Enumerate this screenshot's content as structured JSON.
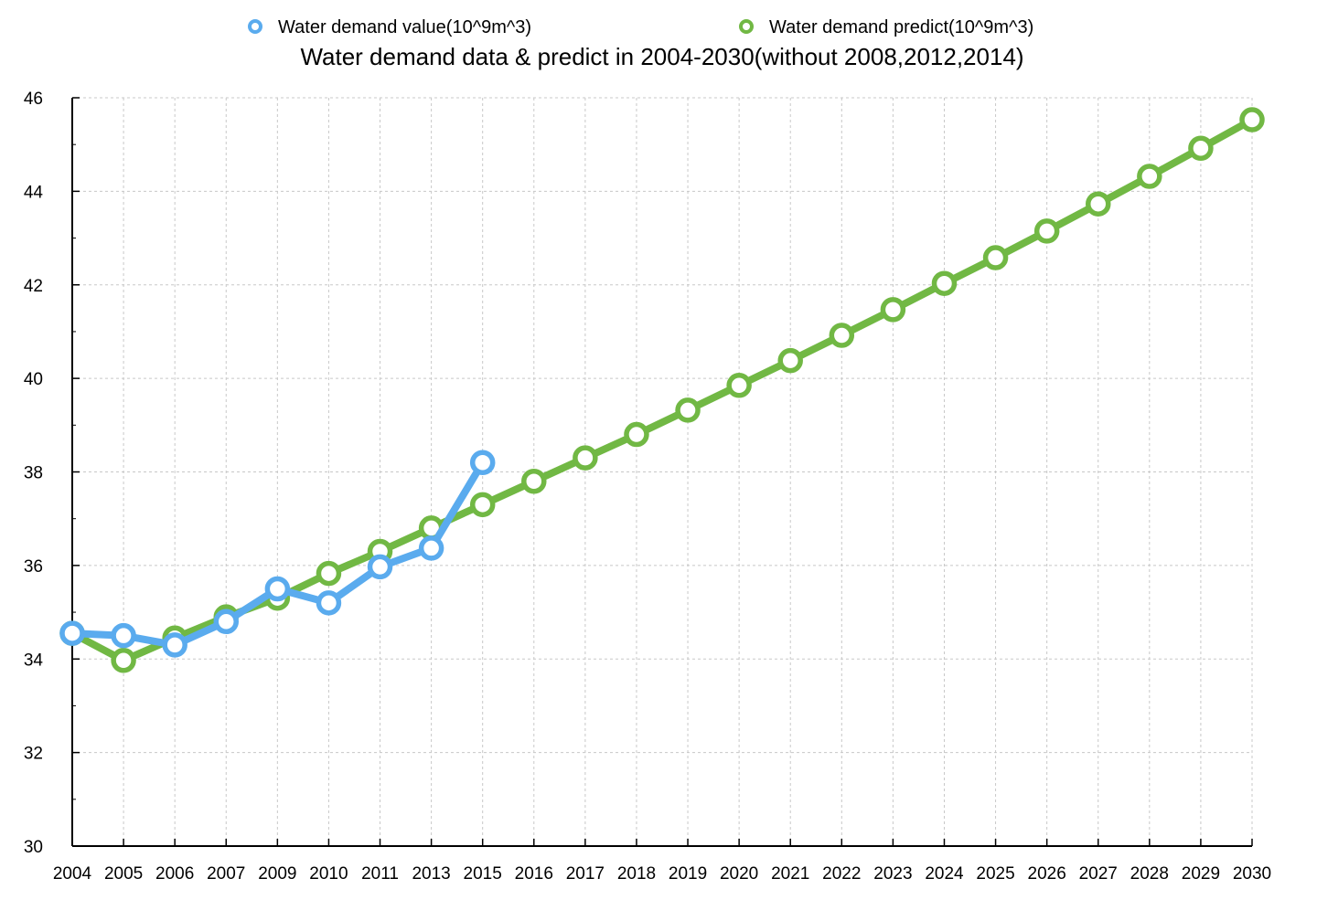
{
  "chart_data": {
    "type": "line",
    "title": "Water demand data & predict in 2004-2030(without 2008,2012,2014)",
    "xlabel": "",
    "ylabel": "",
    "categories": [
      "2004",
      "2005",
      "2006",
      "2007",
      "2009",
      "2010",
      "2011",
      "2013",
      "2015",
      "2016",
      "2017",
      "2018",
      "2019",
      "2020",
      "2021",
      "2022",
      "2023",
      "2024",
      "2025",
      "2026",
      "2027",
      "2028",
      "2029",
      "2030"
    ],
    "ylim": [
      30,
      46
    ],
    "yticks": [
      30,
      32,
      34,
      36,
      38,
      40,
      42,
      44,
      46
    ],
    "grid": true,
    "legend": "top",
    "series": [
      {
        "name": "Water demand value(10^9m^3)",
        "color": "#5aabee",
        "values": [
          34.55,
          34.5,
          34.3,
          34.8,
          35.5,
          35.2,
          35.97,
          36.37,
          38.2,
          null,
          null,
          null,
          null,
          null,
          null,
          null,
          null,
          null,
          null,
          null,
          null,
          null,
          null,
          null
        ]
      },
      {
        "name": "Water demand predict(10^9m^3)",
        "color": "#71b844",
        "values": [
          34.55,
          33.97,
          34.45,
          34.9,
          35.3,
          35.83,
          36.3,
          36.8,
          37.3,
          37.8,
          38.3,
          38.8,
          39.32,
          39.85,
          40.38,
          40.92,
          41.47,
          42.03,
          42.58,
          43.15,
          43.73,
          44.32,
          44.92,
          45.53
        ]
      }
    ]
  }
}
